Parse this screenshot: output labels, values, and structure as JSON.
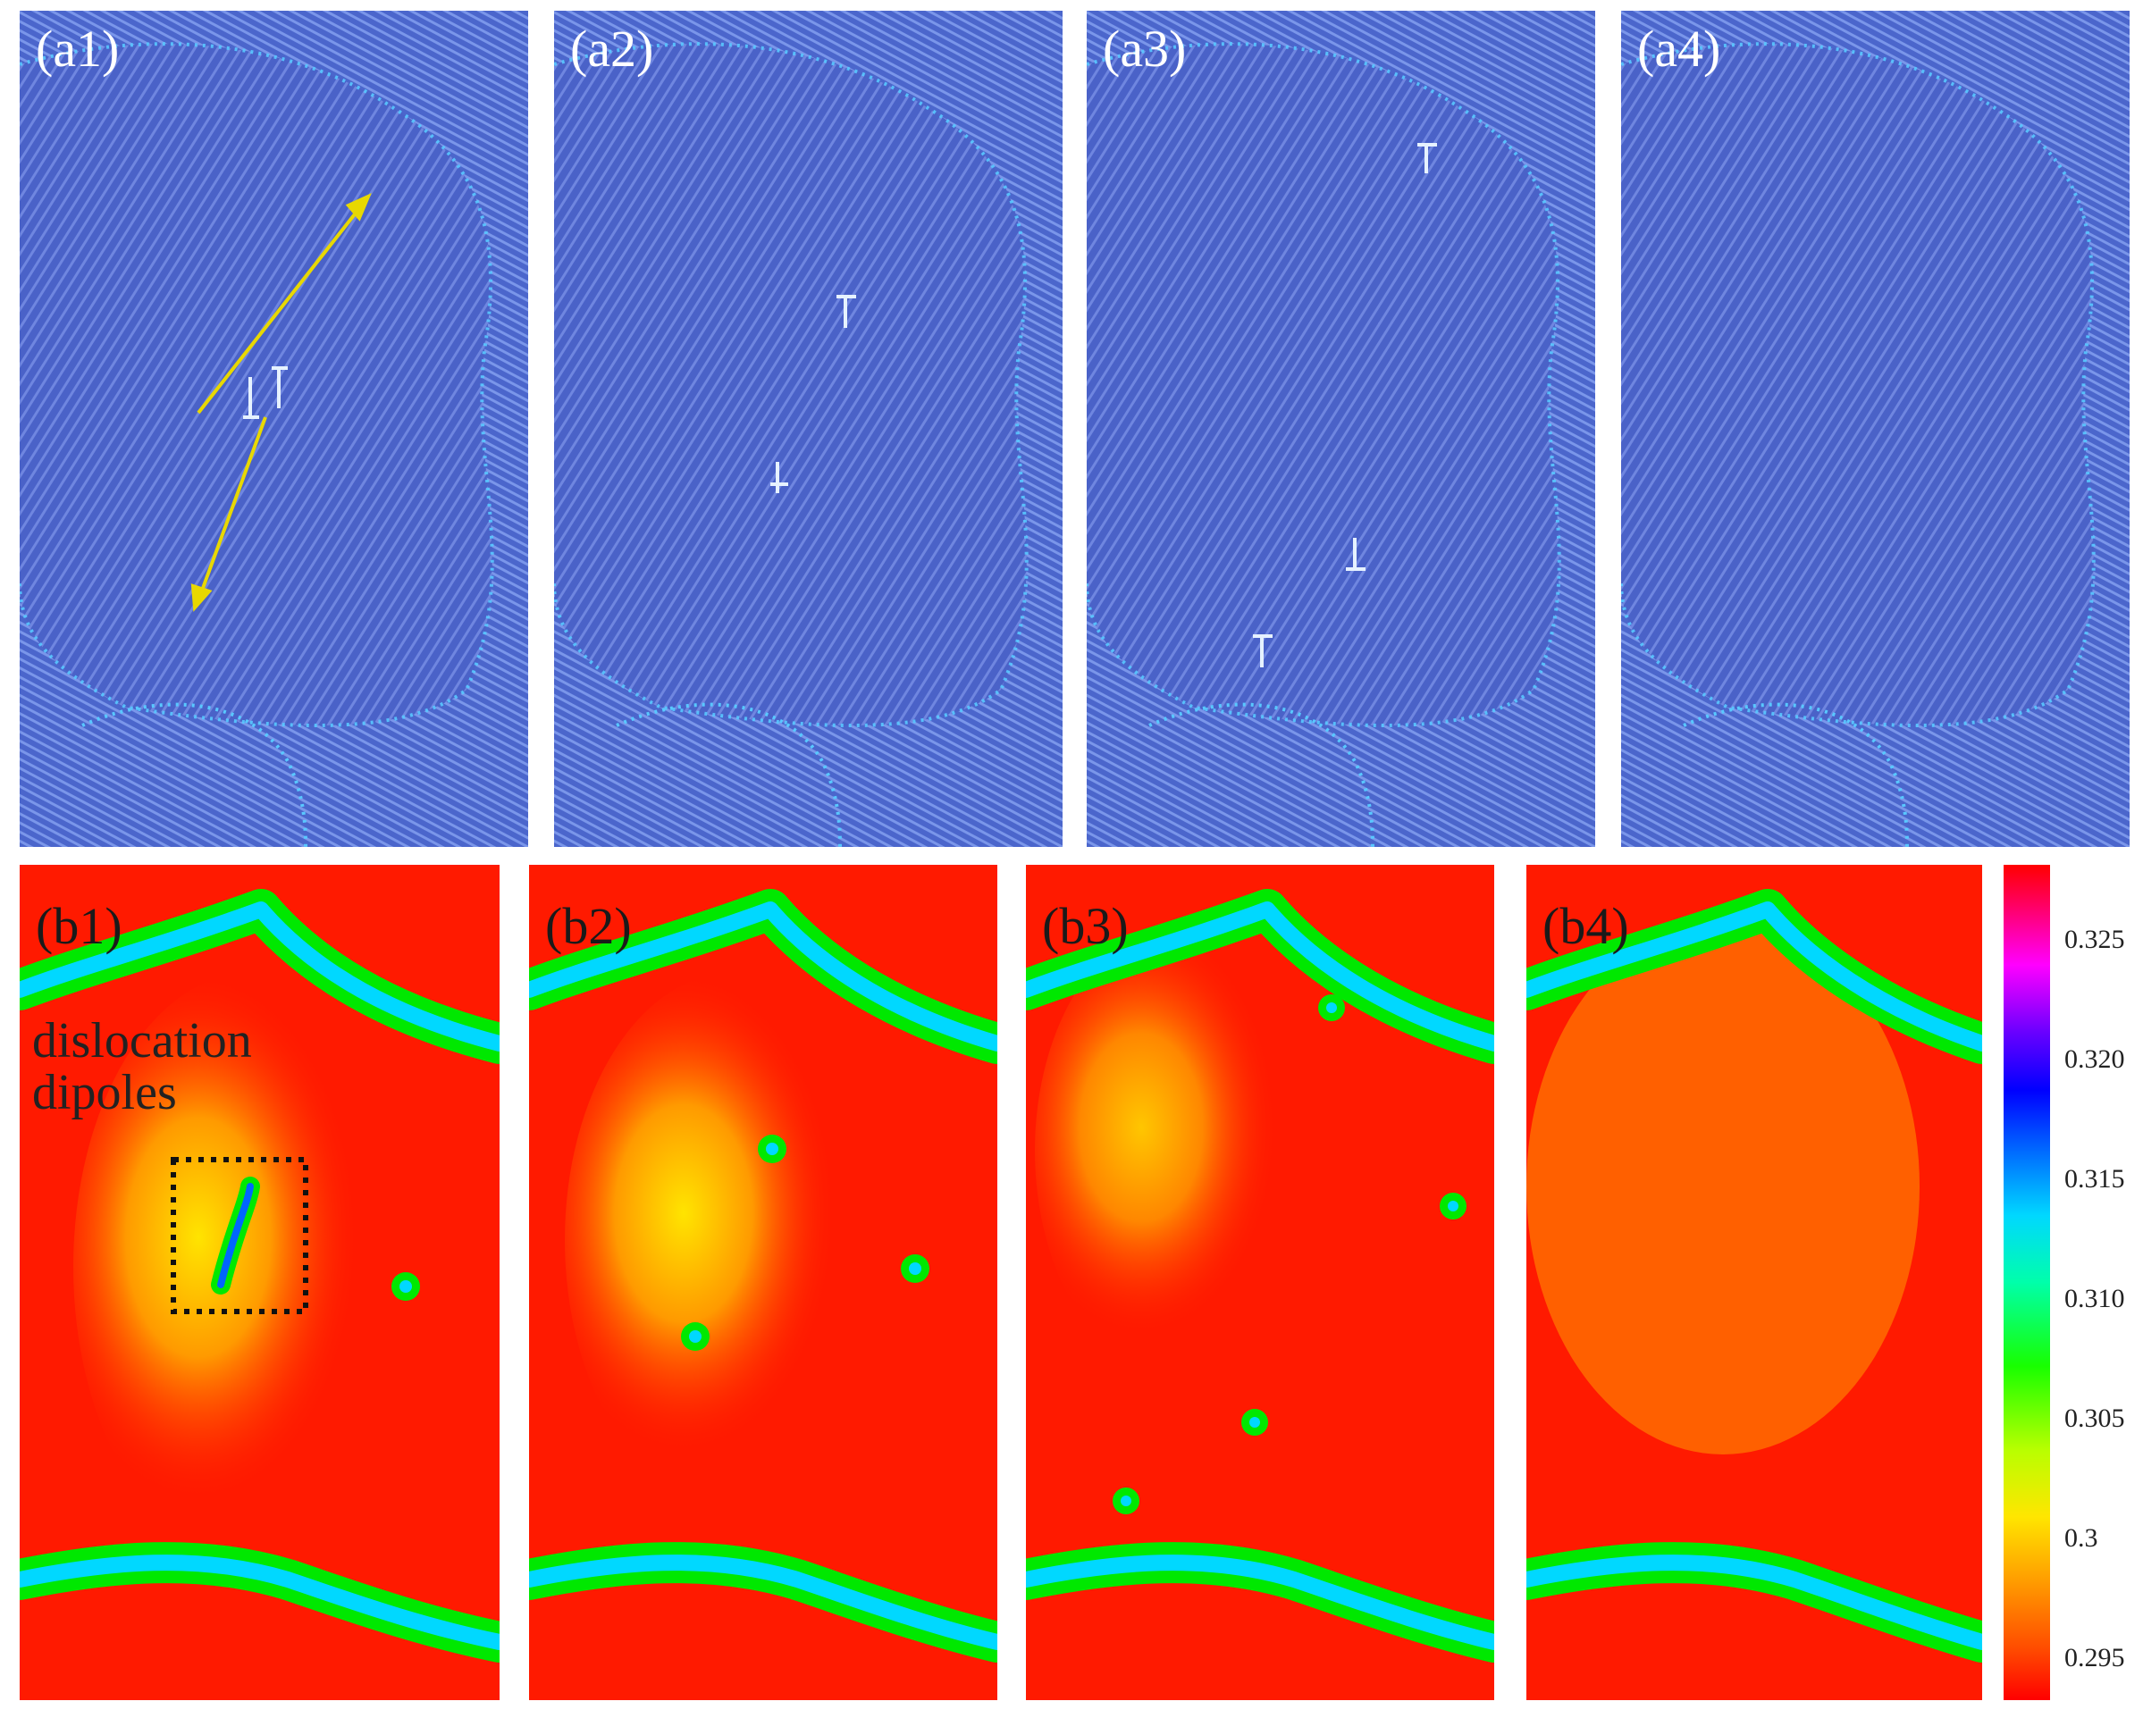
{
  "figure": {
    "top_row_labels": [
      "(a1)",
      "(a2)",
      "(a3)",
      "(a4)"
    ],
    "bottom_row_labels": [
      "(b1)",
      "(b2)",
      "(b3)",
      "(b4)"
    ],
    "annotation": {
      "line1": "dislocation",
      "line2": "dipoles"
    },
    "colorbar": {
      "ticks": [
        "0.325",
        "0.320",
        "0.315",
        "0.310",
        "0.305",
        "0.3",
        "0.295"
      ],
      "colormap": [
        "#ff0000",
        "#ff9a00",
        "#ffe600",
        "#18ff00",
        "#00d8ff",
        "#0000ff",
        "#ff00ff",
        "#ff0000"
      ]
    },
    "colors": {
      "atomic_background": "#4a62c8",
      "boundary_highlight": "#59c8ff",
      "arrow": "#e8d800",
      "field_low": "#ff1a00",
      "field_mid": "#ffe400",
      "field_high": "#1d00e0"
    }
  }
}
